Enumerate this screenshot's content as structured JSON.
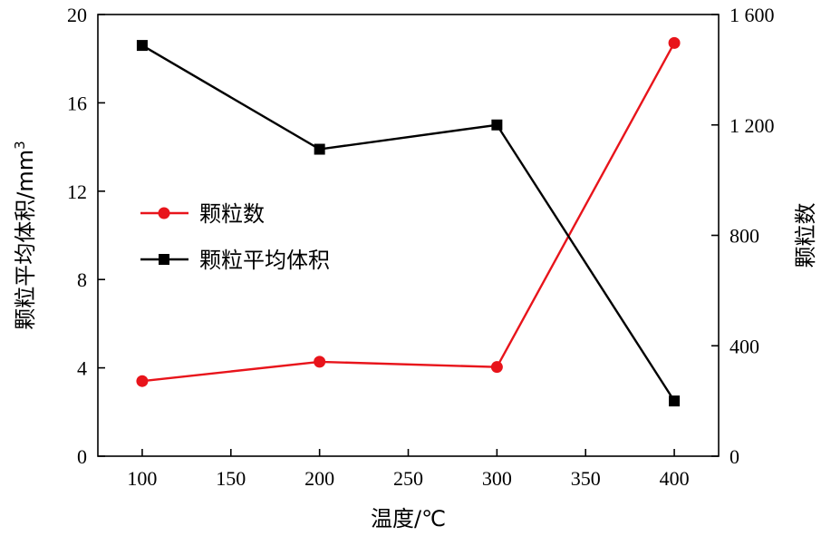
{
  "chart_data": {
    "type": "line",
    "x": [
      100,
      200,
      300,
      400
    ],
    "xlabel": "温度/℃",
    "xlim": [
      75,
      425
    ],
    "xticks": [
      "100",
      "150",
      "200",
      "250",
      "300",
      "350",
      "400"
    ],
    "y_left": {
      "label": "颗粒平均体积/mm",
      "label_superscript": "3",
      "ylim": [
        0,
        20
      ],
      "ticks": [
        "0",
        "4",
        "8",
        "12",
        "16",
        "20"
      ]
    },
    "y_right": {
      "label": "颗粒数",
      "ylim": [
        0,
        1600
      ],
      "ticks": [
        "0",
        "400",
        "800",
        "1 200",
        "1 600"
      ]
    },
    "series": [
      {
        "name": "颗粒数",
        "axis": "right",
        "color": "#e8141b",
        "marker": "circle",
        "values": [
          272,
          342,
          323,
          1497
        ]
      },
      {
        "name": "颗粒平均体积",
        "axis": "left",
        "color": "#000000",
        "marker": "square",
        "values": [
          18.6,
          13.9,
          15.0,
          2.5
        ]
      }
    ],
    "legend_position": "center-left",
    "grid": false
  }
}
